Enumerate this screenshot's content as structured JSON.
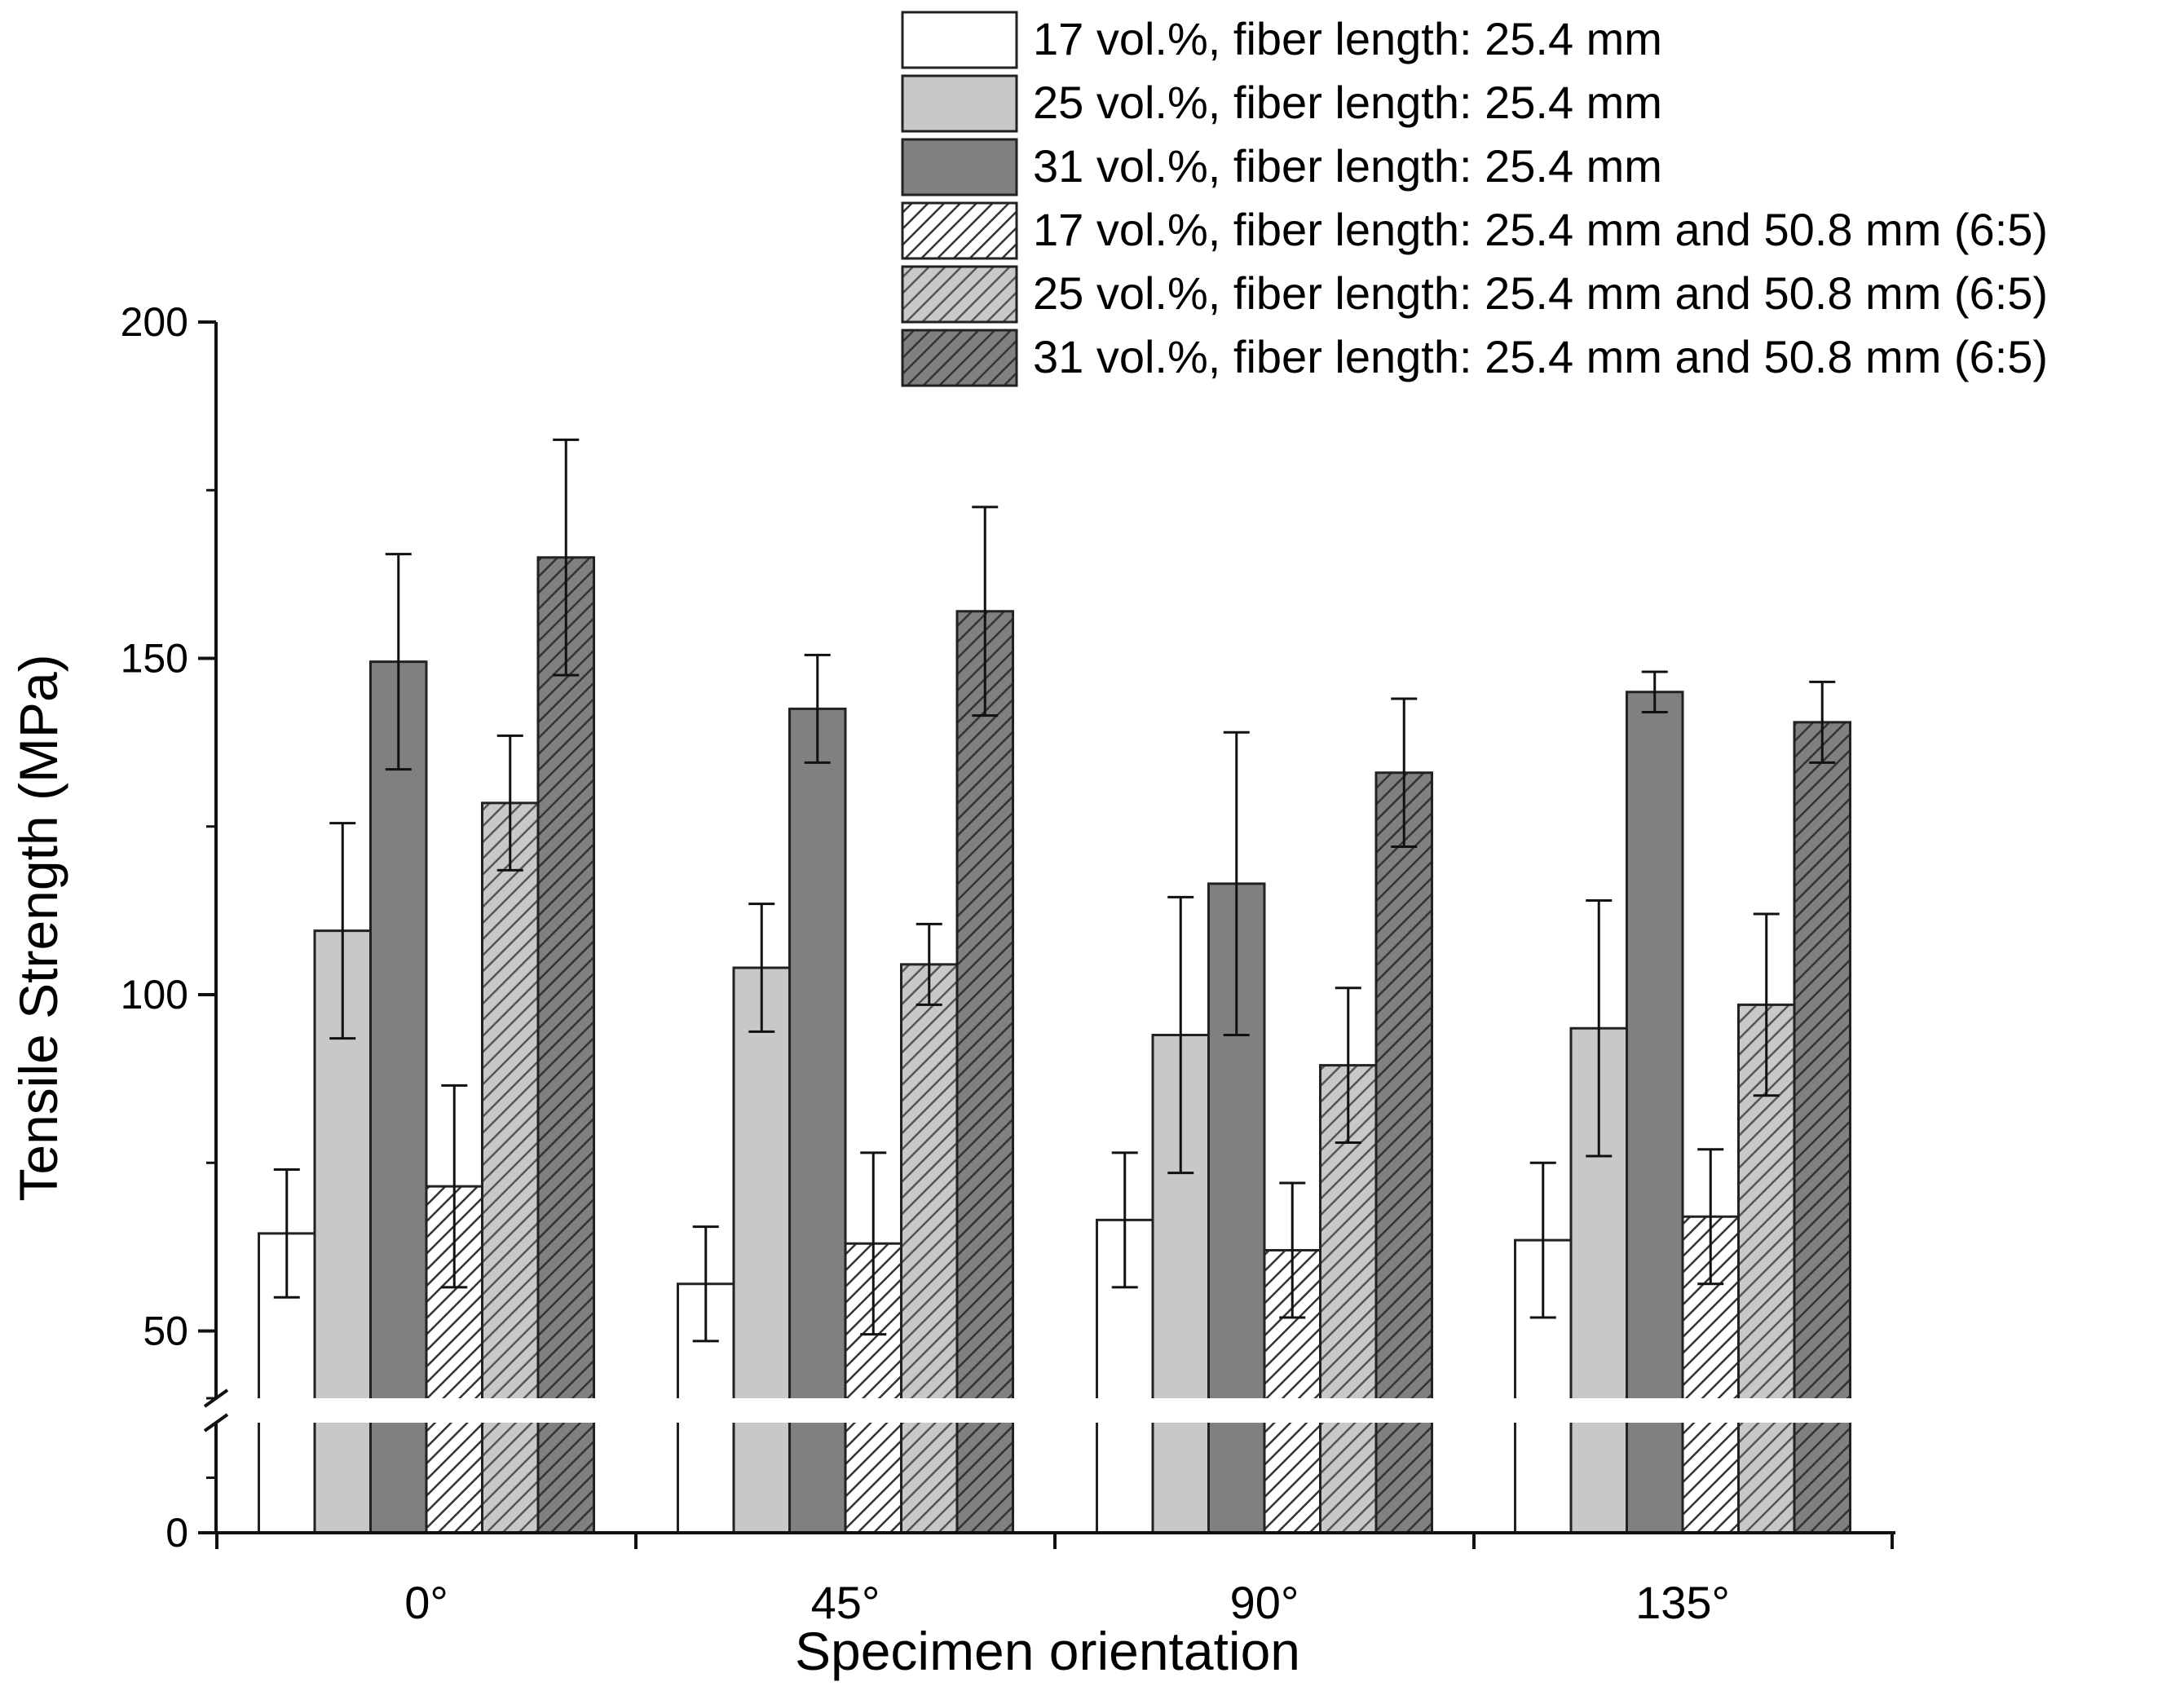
{
  "chart_data": {
    "type": "bar",
    "title": "",
    "xlabel": "Specimen orientation",
    "ylabel": "Tensile Strength (MPa)",
    "ylim": [
      0,
      200
    ],
    "axis_break": [
      0,
      40
    ],
    "yticks": [
      0,
      50,
      100,
      150,
      200
    ],
    "ytick_labels": [
      "0",
      "50",
      "100",
      "150",
      "200"
    ],
    "categories": [
      "0°",
      "45°",
      "90°",
      "135°"
    ],
    "legend_position": "top-right",
    "series": [
      {
        "name": "17 vol.%, fiber length: 25.4 mm",
        "fill": "#ffffff",
        "hatch": false,
        "values": [
          64.5,
          57,
          66.5,
          63.5
        ],
        "errors": [
          9.5,
          8.5,
          10,
          11.5
        ]
      },
      {
        "name": "25 vol.%, fiber length: 25.4 mm",
        "fill": "#c8c8c8",
        "hatch": false,
        "values": [
          109.5,
          104,
          94,
          95
        ],
        "errors": [
          16,
          9.5,
          20.5,
          19
        ]
      },
      {
        "name": "31 vol.%, fiber length: 25.4 mm",
        "fill": "#808080",
        "hatch": false,
        "values": [
          149.5,
          142.5,
          116.5,
          145
        ],
        "errors": [
          16,
          8,
          22.5,
          3
        ]
      },
      {
        "name": "17 vol.%, fiber length: 25.4 mm and 50.8 mm (6:5)",
        "fill": "#ffffff",
        "hatch": true,
        "values": [
          71.5,
          63,
          62,
          67
        ],
        "errors": [
          15,
          13.5,
          10,
          10
        ]
      },
      {
        "name": "25 vol.%, fiber length: 25.4 mm and 50.8 mm (6:5)",
        "fill": "#c8c8c8",
        "hatch": true,
        "values": [
          128.5,
          104.5,
          89.5,
          98.5
        ],
        "errors": [
          10,
          6,
          11.5,
          13.5
        ]
      },
      {
        "name": "31 vol.%, fiber length: 25.4 mm and 50.8 mm (6:5)",
        "fill": "#808080",
        "hatch": true,
        "values": [
          165,
          157,
          133,
          140.5
        ],
        "errors": [
          17.5,
          15.5,
          11,
          6
        ]
      }
    ]
  }
}
